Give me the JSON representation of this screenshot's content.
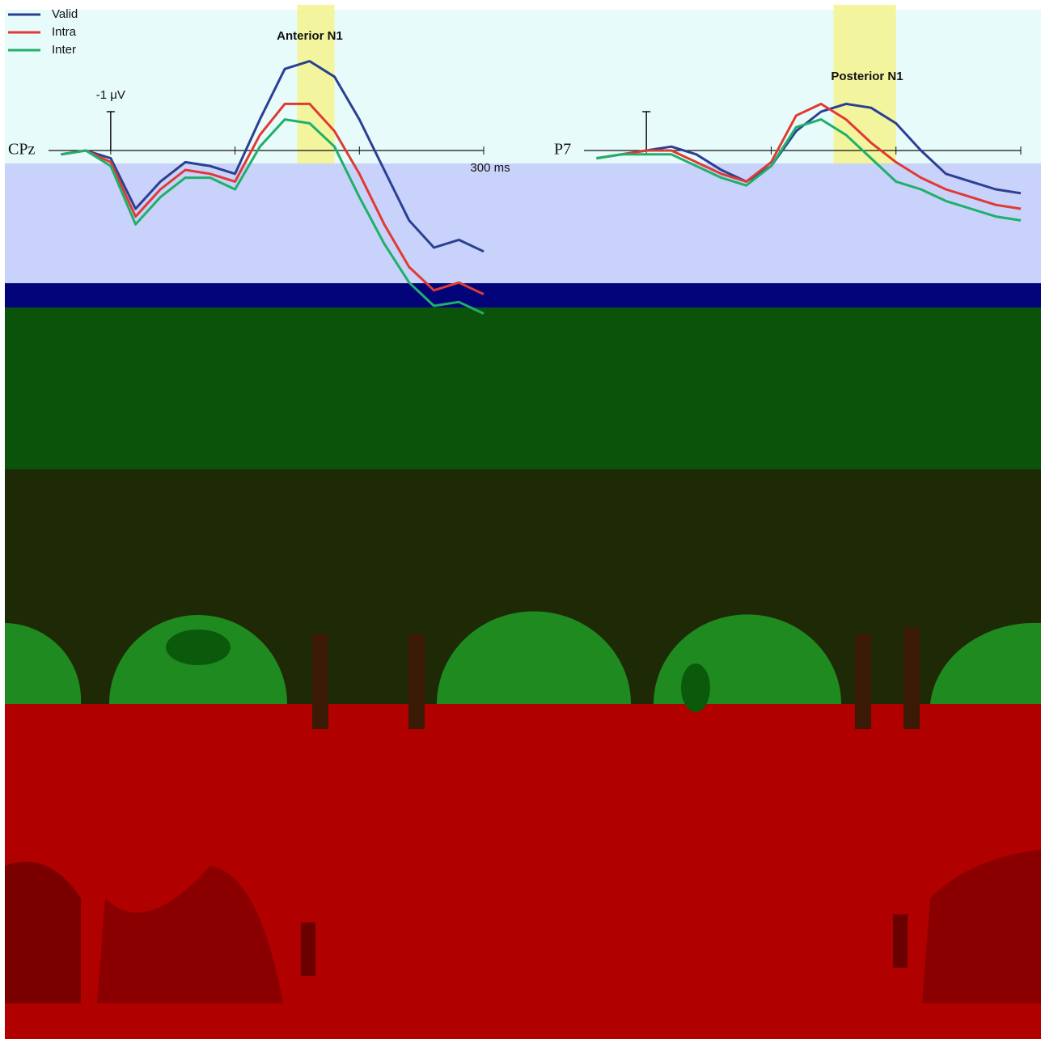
{
  "chart_data": [
    {
      "type": "line",
      "title": "Anterior N1",
      "channel": "CPz",
      "x": [
        -40,
        -20,
        0,
        20,
        40,
        60,
        80,
        100,
        120,
        140,
        160,
        180,
        200,
        220,
        240,
        260,
        280,
        300
      ],
      "series": [
        {
          "name": "Valid",
          "color": "#2b3f93",
          "values": [
            0.1,
            0.0,
            0.2,
            1.5,
            0.8,
            0.3,
            0.4,
            0.6,
            -0.8,
            -2.1,
            -2.3,
            -1.9,
            -0.8,
            0.5,
            1.8,
            2.5,
            2.3,
            2.6
          ]
        },
        {
          "name": "Intra",
          "color": "#e03a34",
          "values": [
            0.1,
            0.0,
            0.3,
            1.7,
            1.0,
            0.5,
            0.6,
            0.8,
            -0.4,
            -1.2,
            -1.2,
            -0.5,
            0.6,
            1.9,
            3.0,
            3.6,
            3.4,
            3.7
          ]
        },
        {
          "name": "Inter",
          "color": "#1fb06a",
          "values": [
            0.1,
            0.0,
            0.4,
            1.9,
            1.2,
            0.7,
            0.7,
            1.0,
            -0.1,
            -0.8,
            -0.7,
            -0.1,
            1.2,
            2.4,
            3.4,
            4.0,
            3.9,
            4.2
          ]
        }
      ],
      "window": [
        150,
        180
      ],
      "window_color": "#f3f38c",
      "xlim": [
        -50,
        300
      ],
      "ylim": [
        -3.5,
        6
      ],
      "xticks": [
        {
          "value": 0,
          "label": null
        },
        {
          "value": 100,
          "label": null
        },
        {
          "value": 200,
          "label": null
        },
        {
          "value": 300,
          "label": "300 ms"
        }
      ],
      "yticks": [
        {
          "value": -1,
          "label": "-1 μV"
        }
      ],
      "legend": "upper left"
    },
    {
      "type": "line",
      "title": "Posterior N1",
      "channel": "P7",
      "x": [
        -40,
        -20,
        0,
        20,
        40,
        60,
        80,
        100,
        120,
        140,
        160,
        180,
        200,
        220,
        240,
        260,
        280,
        300
      ],
      "series": [
        {
          "color": "#2b3f93",
          "values": [
            0.2,
            0.1,
            0.0,
            -0.1,
            0.1,
            0.5,
            0.8,
            0.4,
            -0.5,
            -1.0,
            -1.2,
            -1.1,
            -0.7,
            0.0,
            0.6,
            0.8,
            1.0,
            1.1
          ]
        },
        {
          "color": "#e03a34",
          "values": [
            0.2,
            0.1,
            0.0,
            0.0,
            0.3,
            0.6,
            0.8,
            0.3,
            -0.9,
            -1.2,
            -0.8,
            -0.2,
            0.3,
            0.7,
            1.0,
            1.2,
            1.4,
            1.5
          ]
        },
        {
          "color": "#1fb06a",
          "values": [
            0.2,
            0.1,
            0.1,
            0.1,
            0.4,
            0.7,
            0.9,
            0.4,
            -0.6,
            -0.8,
            -0.4,
            0.2,
            0.8,
            1.0,
            1.3,
            1.5,
            1.7,
            1.8
          ]
        }
      ],
      "window": [
        150,
        200
      ],
      "window_color": "#f3f38c",
      "xlim": [
        -50,
        300
      ],
      "ylim": [
        -3.5,
        6
      ],
      "xticks": [
        {
          "value": 0,
          "label": null
        },
        {
          "value": 100,
          "label": null
        },
        {
          "value": 200,
          "label": null
        },
        {
          "value": 300,
          "label": null
        }
      ],
      "yticks": [
        {
          "value": -1,
          "label": null
        }
      ]
    }
  ]
}
